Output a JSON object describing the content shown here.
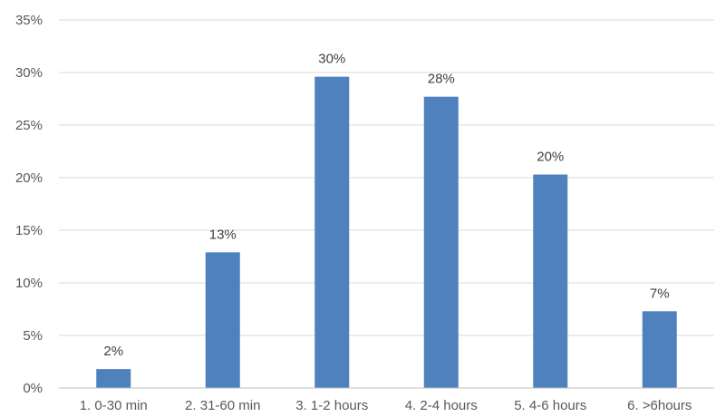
{
  "chart_data": {
    "type": "bar",
    "title": "",
    "xlabel": "",
    "ylabel": "",
    "categories": [
      "1. 0-30 min",
      "2. 31-60 min",
      "3. 1-2 hours",
      "4. 2-4 hours",
      "5. 4-6 hours",
      "6. >6hours"
    ],
    "values": [
      1.8,
      12.9,
      29.6,
      27.7,
      20.3,
      7.3
    ],
    "data_labels": [
      "2%",
      "13%",
      "30%",
      "28%",
      "20%",
      "7%"
    ],
    "ylim": [
      0,
      35
    ],
    "yticks": [
      0,
      5,
      10,
      15,
      20,
      25,
      30,
      35
    ],
    "ytick_labels": [
      "0%",
      "5%",
      "10%",
      "15%",
      "20%",
      "25%",
      "30%",
      "35%"
    ],
    "grid": true,
    "legend": "none",
    "bar_color": "#4f81bd"
  }
}
